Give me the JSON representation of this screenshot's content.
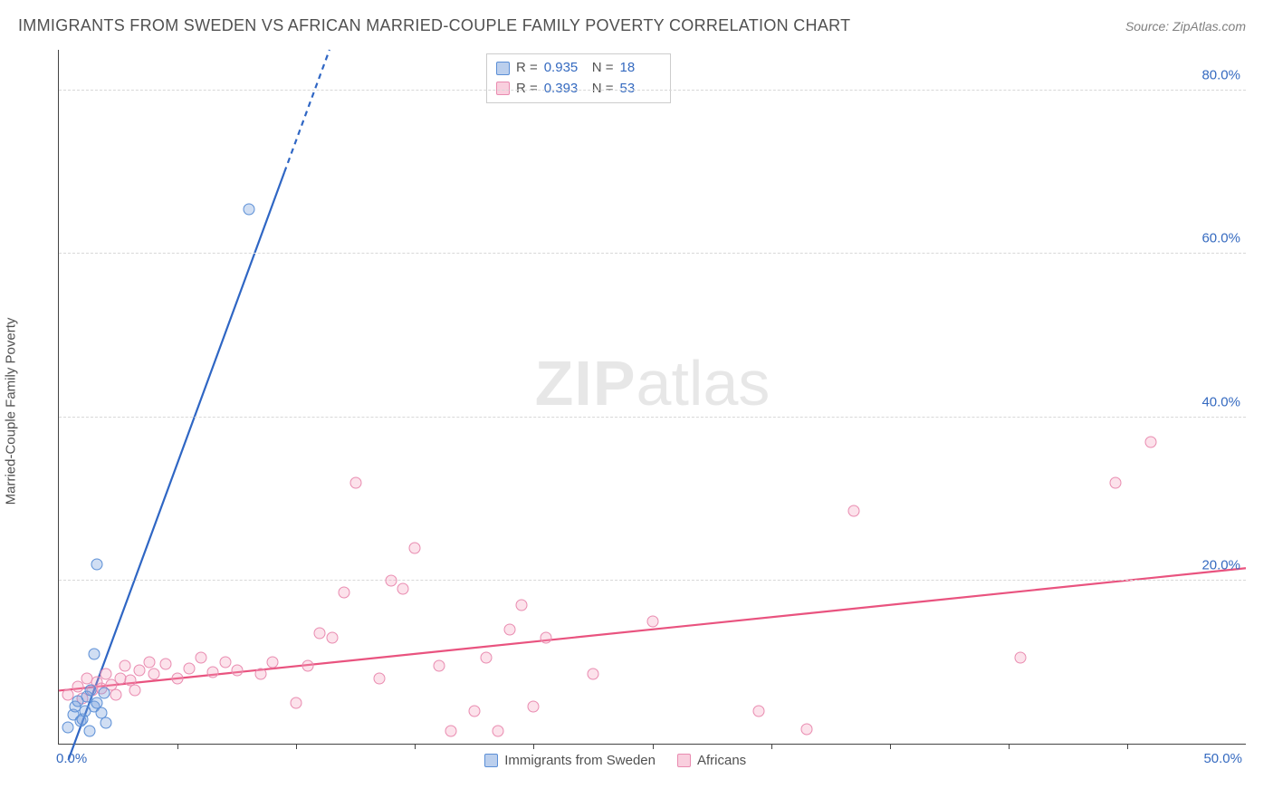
{
  "title": "IMMIGRANTS FROM SWEDEN VS AFRICAN MARRIED-COUPLE FAMILY POVERTY CORRELATION CHART",
  "source": "Source: ZipAtlas.com",
  "ylabel": "Married-Couple Family Poverty",
  "watermark_bold": "ZIP",
  "watermark_rest": "atlas",
  "chart": {
    "type": "scatter",
    "xlim": [
      0,
      50
    ],
    "ylim": [
      0,
      85
    ],
    "x_origin_label": "0.0%",
    "x_end_label": "50.0%",
    "y_ticks": [
      20,
      40,
      60,
      80
    ],
    "y_tick_labels": [
      "20.0%",
      "40.0%",
      "60.0%",
      "80.0%"
    ],
    "x_ticks": [
      5,
      10,
      15,
      20,
      25,
      30,
      35,
      40,
      45
    ],
    "background_color": "#ffffff",
    "grid_color": "#d8d8d8",
    "axis_color": "#444444",
    "tick_label_color": "#356ac0"
  },
  "stats": {
    "series1": {
      "R_label": "R =",
      "R": "0.935",
      "N_label": "N =",
      "N": "18"
    },
    "series2": {
      "R_label": "R =",
      "R": "0.393",
      "N_label": "N =",
      "N": "53"
    }
  },
  "legend": {
    "series1": "Immigrants from Sweden",
    "series2": "Africans"
  },
  "series1": {
    "color_fill": "rgba(120,160,220,0.35)",
    "color_stroke": "#5b8fd6",
    "line_color": "#2f66c4",
    "line_solid": {
      "x1": 0.4,
      "y1": -2,
      "x2": 9.5,
      "y2": 70
    },
    "line_dashed": {
      "x1": 9.5,
      "y1": 70,
      "x2": 11.4,
      "y2": 85
    },
    "marker_radius": 6.5,
    "points": [
      [
        0.4,
        2.0
      ],
      [
        0.6,
        3.5
      ],
      [
        0.7,
        4.5
      ],
      [
        0.8,
        5.2
      ],
      [
        0.9,
        2.8
      ],
      [
        1.0,
        3.0
      ],
      [
        1.1,
        4.0
      ],
      [
        1.2,
        5.8
      ],
      [
        1.3,
        1.5
      ],
      [
        1.35,
        6.5
      ],
      [
        1.5,
        4.5
      ],
      [
        1.6,
        5.0
      ],
      [
        1.8,
        3.8
      ],
      [
        2.0,
        2.5
      ],
      [
        1.5,
        11.0
      ],
      [
        1.6,
        22.0
      ],
      [
        8.0,
        65.5
      ],
      [
        1.9,
        6.2
      ]
    ]
  },
  "series2": {
    "color_fill": "rgba(244,160,190,0.30)",
    "color_stroke": "#e98bb0",
    "line_color": "#e9537f",
    "line": {
      "x1": 0,
      "y1": 6.5,
      "x2": 50,
      "y2": 21.5
    },
    "marker_radius": 6.5,
    "points": [
      [
        0.4,
        6.0
      ],
      [
        0.8,
        7.0
      ],
      [
        1.0,
        5.5
      ],
      [
        1.2,
        8.0
      ],
      [
        1.4,
        6.5
      ],
      [
        1.6,
        7.5
      ],
      [
        1.8,
        6.8
      ],
      [
        2.0,
        8.5
      ],
      [
        2.2,
        7.2
      ],
      [
        2.4,
        6.0
      ],
      [
        2.6,
        8.0
      ],
      [
        2.8,
        9.5
      ],
      [
        3.0,
        7.8
      ],
      [
        3.2,
        6.5
      ],
      [
        3.4,
        9.0
      ],
      [
        3.8,
        10.0
      ],
      [
        4.0,
        8.5
      ],
      [
        4.5,
        9.8
      ],
      [
        5.0,
        8.0
      ],
      [
        5.5,
        9.2
      ],
      [
        6.0,
        10.5
      ],
      [
        6.5,
        8.8
      ],
      [
        7.0,
        10.0
      ],
      [
        7.5,
        9.0
      ],
      [
        8.5,
        8.5
      ],
      [
        9.0,
        10.0
      ],
      [
        10.0,
        5.0
      ],
      [
        10.5,
        9.5
      ],
      [
        11.0,
        13.5
      ],
      [
        11.5,
        13.0
      ],
      [
        12.0,
        18.5
      ],
      [
        12.5,
        32.0
      ],
      [
        13.5,
        8.0
      ],
      [
        14.0,
        20.0
      ],
      [
        14.5,
        19.0
      ],
      [
        15.0,
        24.0
      ],
      [
        16.0,
        9.5
      ],
      [
        16.5,
        1.5
      ],
      [
        17.5,
        4.0
      ],
      [
        18.0,
        10.5
      ],
      [
        18.5,
        1.5
      ],
      [
        19.0,
        14.0
      ],
      [
        19.5,
        17.0
      ],
      [
        20.0,
        4.5
      ],
      [
        20.5,
        13.0
      ],
      [
        25.0,
        15.0
      ],
      [
        29.5,
        4.0
      ],
      [
        31.5,
        1.8
      ],
      [
        33.5,
        28.5
      ],
      [
        40.5,
        10.5
      ],
      [
        44.5,
        32.0
      ],
      [
        46.0,
        37.0
      ],
      [
        22.5,
        8.5
      ]
    ]
  }
}
